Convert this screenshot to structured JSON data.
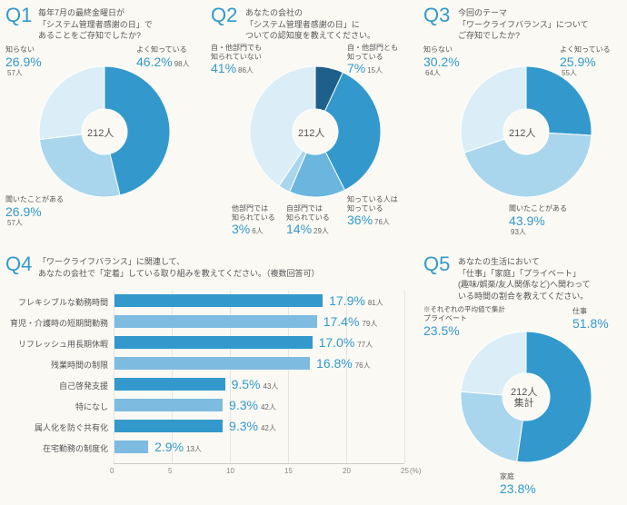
{
  "colors": {
    "accent": "#3399cc",
    "bg": "#faf9f4",
    "text": "#555555",
    "leader": "#aaaaaa",
    "barAlt": "#7ebbe0"
  },
  "q1": {
    "label": "Q1",
    "title": "毎年7月の最終金曜日が\n「システム管理者感謝の日」で\nあることをご存知でしたか?",
    "center": "212人",
    "slices": [
      {
        "name": "よく知っている",
        "pct": 46.2,
        "count": "98人",
        "color": "#3399cc"
      },
      {
        "name": "聞いたことがある",
        "pct": 26.9,
        "count": "57人",
        "color": "#a9d6ec"
      },
      {
        "name": "知らない",
        "pct": 26.9,
        "count": "57人",
        "color": "#dbeef7"
      }
    ]
  },
  "q2": {
    "label": "Q2",
    "title": "あなたの会社の\n「システム管理者感謝の日」に\nついての認知度を教えてください。",
    "center": "212人",
    "slices": [
      {
        "name": "自・他部門とも\n知っている",
        "pct": 7,
        "count": "15人",
        "color": "#1f5f8b"
      },
      {
        "name": "知っている人は\n知っている",
        "pct": 36,
        "count": "76人",
        "color": "#3399cc"
      },
      {
        "name": "自部門では\n知られている",
        "pct": 14,
        "count": "29人",
        "color": "#6ab6de"
      },
      {
        "name": "他部門では\n知られている",
        "pct": 3,
        "count": "6人",
        "color": "#a9d6ec"
      },
      {
        "name": "自・他部門でも\n知られていない",
        "pct": 41,
        "count": "86人",
        "color": "#dbeef7"
      }
    ]
  },
  "q3": {
    "label": "Q3",
    "title": "今回のテーマ\n「ワークライフバランス」について\nご存知でしたか?",
    "center": "212人",
    "slices": [
      {
        "name": "よく知っている",
        "pct": 25.9,
        "count": "55人",
        "color": "#3399cc"
      },
      {
        "name": "聞いたことがある",
        "pct": 43.9,
        "count": "93人",
        "color": "#a9d6ec"
      },
      {
        "name": "知らない",
        "pct": 30.2,
        "count": "64人",
        "color": "#dbeef7"
      }
    ]
  },
  "q4": {
    "label": "Q4",
    "title": "「ワークライフバランス」に関連して、\nあなたの会社で「定着」している取り組みを教えてください。（複数回答可）",
    "xmax": 25,
    "xticks": [
      0,
      5,
      10,
      15,
      20,
      25
    ],
    "xunit": "(%)",
    "bar_color": "#3399cc",
    "bar_color_alt": "#7ebbe0",
    "items": [
      {
        "label": "フレキシブルな勤務時間",
        "pct": 17.9,
        "count": "81人"
      },
      {
        "label": "育児・介護時の短期間勤務",
        "pct": 17.4,
        "count": "79人"
      },
      {
        "label": "リフレッシュ用長期休暇",
        "pct": 17.0,
        "count": "77人"
      },
      {
        "label": "残業時間の制限",
        "pct": 16.8,
        "count": "76人"
      },
      {
        "label": "自己啓発支援",
        "pct": 9.5,
        "count": "43人"
      },
      {
        "label": "特になし",
        "pct": 9.3,
        "count": "42人"
      },
      {
        "label": "属人化を防ぐ共有化",
        "pct": 9.3,
        "count": "42人"
      },
      {
        "label": "在宅勤務の制度化",
        "pct": 2.9,
        "count": "13人"
      }
    ]
  },
  "q5": {
    "label": "Q5",
    "title": "あなたの生活において\n「仕事」「家庭」「プライベート」\n(趣味/娯楽/友人関係など)へ関わって\nいる時間の割合を教えてください。",
    "note": "※それぞれの平均値で集計",
    "center": "212人\n集計",
    "slices": [
      {
        "name": "仕事",
        "pct": 51.8,
        "color": "#3399cc"
      },
      {
        "name": "家庭",
        "pct": 23.8,
        "color": "#a9d6ec"
      },
      {
        "name": "プライベート",
        "pct": 23.5,
        "color": "#dbeef7"
      }
    ]
  }
}
